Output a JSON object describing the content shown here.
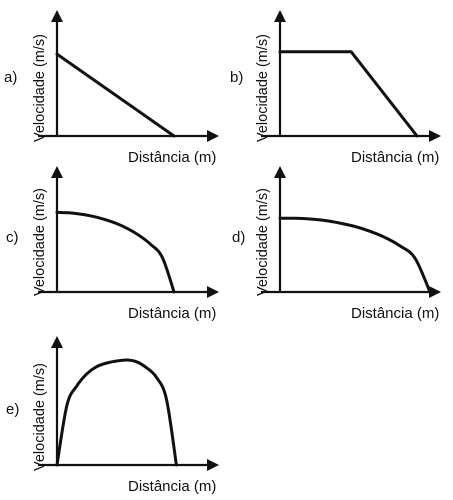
{
  "chart_data": [
    {
      "type": "line",
      "option_label": "a)",
      "xlabel": "Distância (m)",
      "ylabel": "Velocidade (m/s)",
      "shape": "linear-decrease",
      "x": [
        0,
        1
      ],
      "y": [
        0.7,
        0
      ]
    },
    {
      "type": "line",
      "option_label": "b)",
      "xlabel": "Distância (m)",
      "ylabel": "Velocidade (m/s)",
      "shape": "constant-then-linear-decrease",
      "x": [
        0,
        0.52,
        1
      ],
      "y": [
        0.72,
        0.72,
        0
      ]
    },
    {
      "type": "line",
      "option_label": "c)",
      "xlabel": "Distância (m)",
      "ylabel": "Velocidade (m/s)",
      "shape": "concave-down-to-zero",
      "x": [
        0,
        0.1,
        0.2,
        0.3,
        0.4,
        0.5,
        0.6,
        0.7,
        0.8,
        0.9,
        1
      ],
      "y": [
        0.68,
        0.677,
        0.666,
        0.648,
        0.622,
        0.589,
        0.544,
        0.485,
        0.408,
        0.296,
        0
      ]
    },
    {
      "type": "line",
      "option_label": "d)",
      "xlabel": "Distância (m)",
      "ylabel": "Velocidade (m/s)",
      "shape": "flat-then-curving-to-zero",
      "x": [
        0,
        0.1,
        0.2,
        0.3,
        0.4,
        0.5,
        0.6,
        0.7,
        0.8,
        0.9,
        1
      ],
      "y": [
        0.63,
        0.63,
        0.624,
        0.611,
        0.589,
        0.56,
        0.519,
        0.466,
        0.394,
        0.289,
        0
      ]
    },
    {
      "type": "line",
      "option_label": "e)",
      "xlabel": "Distância (m)",
      "ylabel": "Velocidade (m/s)",
      "shape": "arch-rising-then-falling",
      "x": [
        0,
        0.05,
        0.1,
        0.15,
        0.2,
        0.25,
        0.3,
        0.35,
        0.4,
        0.45,
        0.5,
        0.55,
        0.6,
        0.65,
        0.7,
        0.75,
        0.8,
        0.85,
        0.9,
        0.95,
        1
      ],
      "y": [
        0,
        0.5,
        0.66,
        0.76,
        0.82,
        0.85,
        0.867,
        0.875,
        0.86,
        0.81,
        0.73,
        0.55,
        0,
        null,
        null,
        null,
        null,
        null,
        null,
        null,
        null
      ]
    }
  ]
}
